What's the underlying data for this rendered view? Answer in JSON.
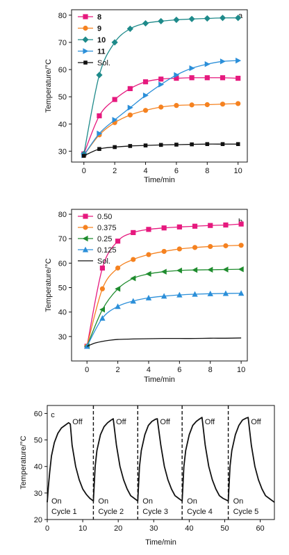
{
  "chart_data": [
    {
      "panel": "a",
      "type": "line",
      "xlabel": "Time/min",
      "ylabel": "Temperature/°C",
      "xlim": [
        -0.8,
        10.6
      ],
      "ylim": [
        26,
        82
      ],
      "xticks": [
        0,
        2,
        4,
        6,
        8,
        10
      ],
      "yticks": [
        30,
        40,
        50,
        60,
        70,
        80
      ],
      "legend_position": "top-left",
      "series": [
        {
          "name": "8",
          "color": "#e6197e",
          "marker": "square",
          "bold": true,
          "x": [
            0,
            1,
            2,
            3,
            4,
            5,
            6,
            7,
            8,
            9,
            10
          ],
          "y": [
            29,
            43,
            49,
            53,
            55.5,
            56.5,
            56.8,
            57,
            57,
            57,
            56.8
          ]
        },
        {
          "name": "9",
          "color": "#f58220",
          "marker": "circle",
          "bold": true,
          "x": [
            0,
            1,
            2,
            3,
            4,
            5,
            6,
            7,
            8,
            9,
            10
          ],
          "y": [
            28.5,
            36,
            40.5,
            43.3,
            45,
            46.2,
            46.8,
            47,
            47.1,
            47.3,
            47.5
          ]
        },
        {
          "name": "10",
          "color": "#1e8a8a",
          "marker": "diamond",
          "bold": true,
          "x": [
            0,
            1,
            2,
            3,
            4,
            5,
            6,
            7,
            8,
            9,
            10
          ],
          "y": [
            29,
            58,
            70,
            75,
            77,
            77.8,
            78.3,
            78.6,
            78.8,
            79,
            79
          ]
        },
        {
          "name": "11",
          "color": "#2b8fd9",
          "marker": "triangle-right",
          "bold": true,
          "x": [
            0,
            1,
            2,
            3,
            4,
            5,
            6,
            7,
            8,
            9,
            10
          ],
          "y": [
            28.5,
            36.5,
            41.5,
            46,
            50.5,
            54.5,
            58,
            60.5,
            62,
            63,
            63.3
          ]
        },
        {
          "name": "Sol.",
          "color": "#111111",
          "marker": "square-small",
          "bold": false,
          "x": [
            0,
            1,
            2,
            3,
            4,
            5,
            6,
            7,
            8,
            9,
            10
          ],
          "y": [
            28.3,
            30.8,
            31.5,
            31.9,
            32.1,
            32.3,
            32.4,
            32.5,
            32.6,
            32.6,
            32.6
          ]
        }
      ]
    },
    {
      "panel": "b",
      "type": "line",
      "xlabel": "Time/min",
      "ylabel": "Temperature/°C",
      "xlim": [
        -1,
        10.4
      ],
      "ylim": [
        20,
        82
      ],
      "xticks": [
        0,
        2,
        4,
        6,
        8,
        10
      ],
      "yticks": [
        30,
        40,
        50,
        60,
        70,
        80
      ],
      "legend_position": "top-left",
      "series": [
        {
          "name": "0.50",
          "color": "#e6197e",
          "marker": "square",
          "x": [
            0,
            1,
            2,
            3,
            4,
            5,
            6,
            7,
            8,
            9,
            10
          ],
          "y": [
            26,
            58,
            69,
            72.5,
            73.8,
            74.4,
            74.8,
            75.1,
            75.4,
            75.6,
            76
          ]
        },
        {
          "name": "0.375",
          "color": "#f58220",
          "marker": "circle",
          "x": [
            0,
            1,
            2,
            3,
            4,
            5,
            6,
            7,
            8,
            9,
            10
          ],
          "y": [
            26,
            49.5,
            58,
            61.5,
            63.5,
            64.8,
            65.8,
            66.4,
            66.8,
            67.1,
            67.3
          ]
        },
        {
          "name": "0.25",
          "color": "#1f8c2e",
          "marker": "triangle-left",
          "x": [
            0,
            1,
            2,
            3,
            4,
            5,
            6,
            7,
            8,
            9,
            10
          ],
          "y": [
            26,
            41,
            49.5,
            53.8,
            55.6,
            56.5,
            57,
            57.2,
            57.3,
            57.4,
            57.5
          ]
        },
        {
          "name": "0.125",
          "color": "#2b8fd9",
          "marker": "triangle-up",
          "x": [
            0,
            1,
            2,
            3,
            4,
            5,
            6,
            7,
            8,
            9,
            10
          ],
          "y": [
            26,
            37.5,
            42.3,
            44.5,
            45.8,
            46.5,
            47,
            47.3,
            47.5,
            47.6,
            47.7
          ]
        },
        {
          "name": "Sol.",
          "color": "#111111",
          "marker": "none",
          "x": [
            0,
            0.5,
            1,
            1.5,
            2,
            3,
            4,
            5,
            6,
            7,
            8,
            9,
            10
          ],
          "y": [
            26,
            27.3,
            28,
            28.5,
            28.8,
            29,
            29.1,
            29.2,
            29.2,
            29.2,
            29.3,
            29.3,
            29.4
          ]
        }
      ]
    },
    {
      "panel": "c",
      "type": "line",
      "xlabel": "Time/min",
      "ylabel": "Temperature/°C",
      "xlim": [
        0,
        64
      ],
      "ylim": [
        20,
        63
      ],
      "xticks": [
        0,
        10,
        20,
        30,
        40,
        50,
        60
      ],
      "yticks": [
        20,
        30,
        40,
        50,
        60
      ],
      "legend_position": "none",
      "cycle_boundaries": [
        13,
        25.5,
        38,
        51
      ],
      "off_labels": [
        "Off",
        "Off",
        "Off",
        "Off",
        "Off"
      ],
      "on_labels": [
        "On",
        "On",
        "On",
        "On",
        "On"
      ],
      "cycle_labels": [
        "Cycle 1",
        "Cycle 2",
        "Cycle 3",
        "Cycle 4",
        "Cycle 5"
      ],
      "cycle_starts": [
        0,
        13,
        25.5,
        38,
        51
      ],
      "series": [
        {
          "name": "",
          "color": "#111111",
          "x": [
            0,
            0.3,
            0.7,
            1.2,
            2,
            3,
            4,
            5,
            6,
            6.5,
            7,
            8,
            9,
            10,
            11,
            12,
            13,
            13.5,
            14,
            15,
            16,
            17,
            18,
            18.6,
            19.5,
            20.5,
            21.5,
            22.5,
            23.5,
            24.5,
            25.5,
            26,
            26.5,
            27.5,
            28.5,
            29.5,
            30.5,
            31,
            32,
            33,
            34,
            35,
            36,
            37,
            38,
            38.5,
            39,
            40,
            41,
            42,
            43,
            43.6,
            44.5,
            45.5,
            46.5,
            47.5,
            48.5,
            49.5,
            51,
            51.5,
            52,
            53,
            54,
            55,
            56,
            56.6,
            57.5,
            58.5,
            59.5,
            60.5,
            61.5,
            62.5,
            64
          ],
          "y": [
            26.5,
            32,
            38,
            44,
            49,
            52.5,
            54.5,
            55.5,
            56.5,
            56,
            48,
            40,
            35,
            31.5,
            29.5,
            28,
            27,
            40,
            46,
            52,
            55,
            56.5,
            57.5,
            58,
            48,
            40,
            35,
            31.5,
            29,
            28,
            27,
            40,
            46,
            52,
            55.5,
            57,
            57.8,
            58,
            48,
            40,
            35,
            31.5,
            29,
            28,
            27,
            40,
            46,
            52,
            55.5,
            57,
            58,
            58.5,
            48,
            40,
            35,
            31.5,
            29,
            28,
            27,
            40,
            46,
            52,
            55.5,
            57.5,
            58.2,
            58.5,
            48,
            40,
            35,
            31.5,
            29,
            28,
            26.5
          ]
        }
      ]
    }
  ]
}
